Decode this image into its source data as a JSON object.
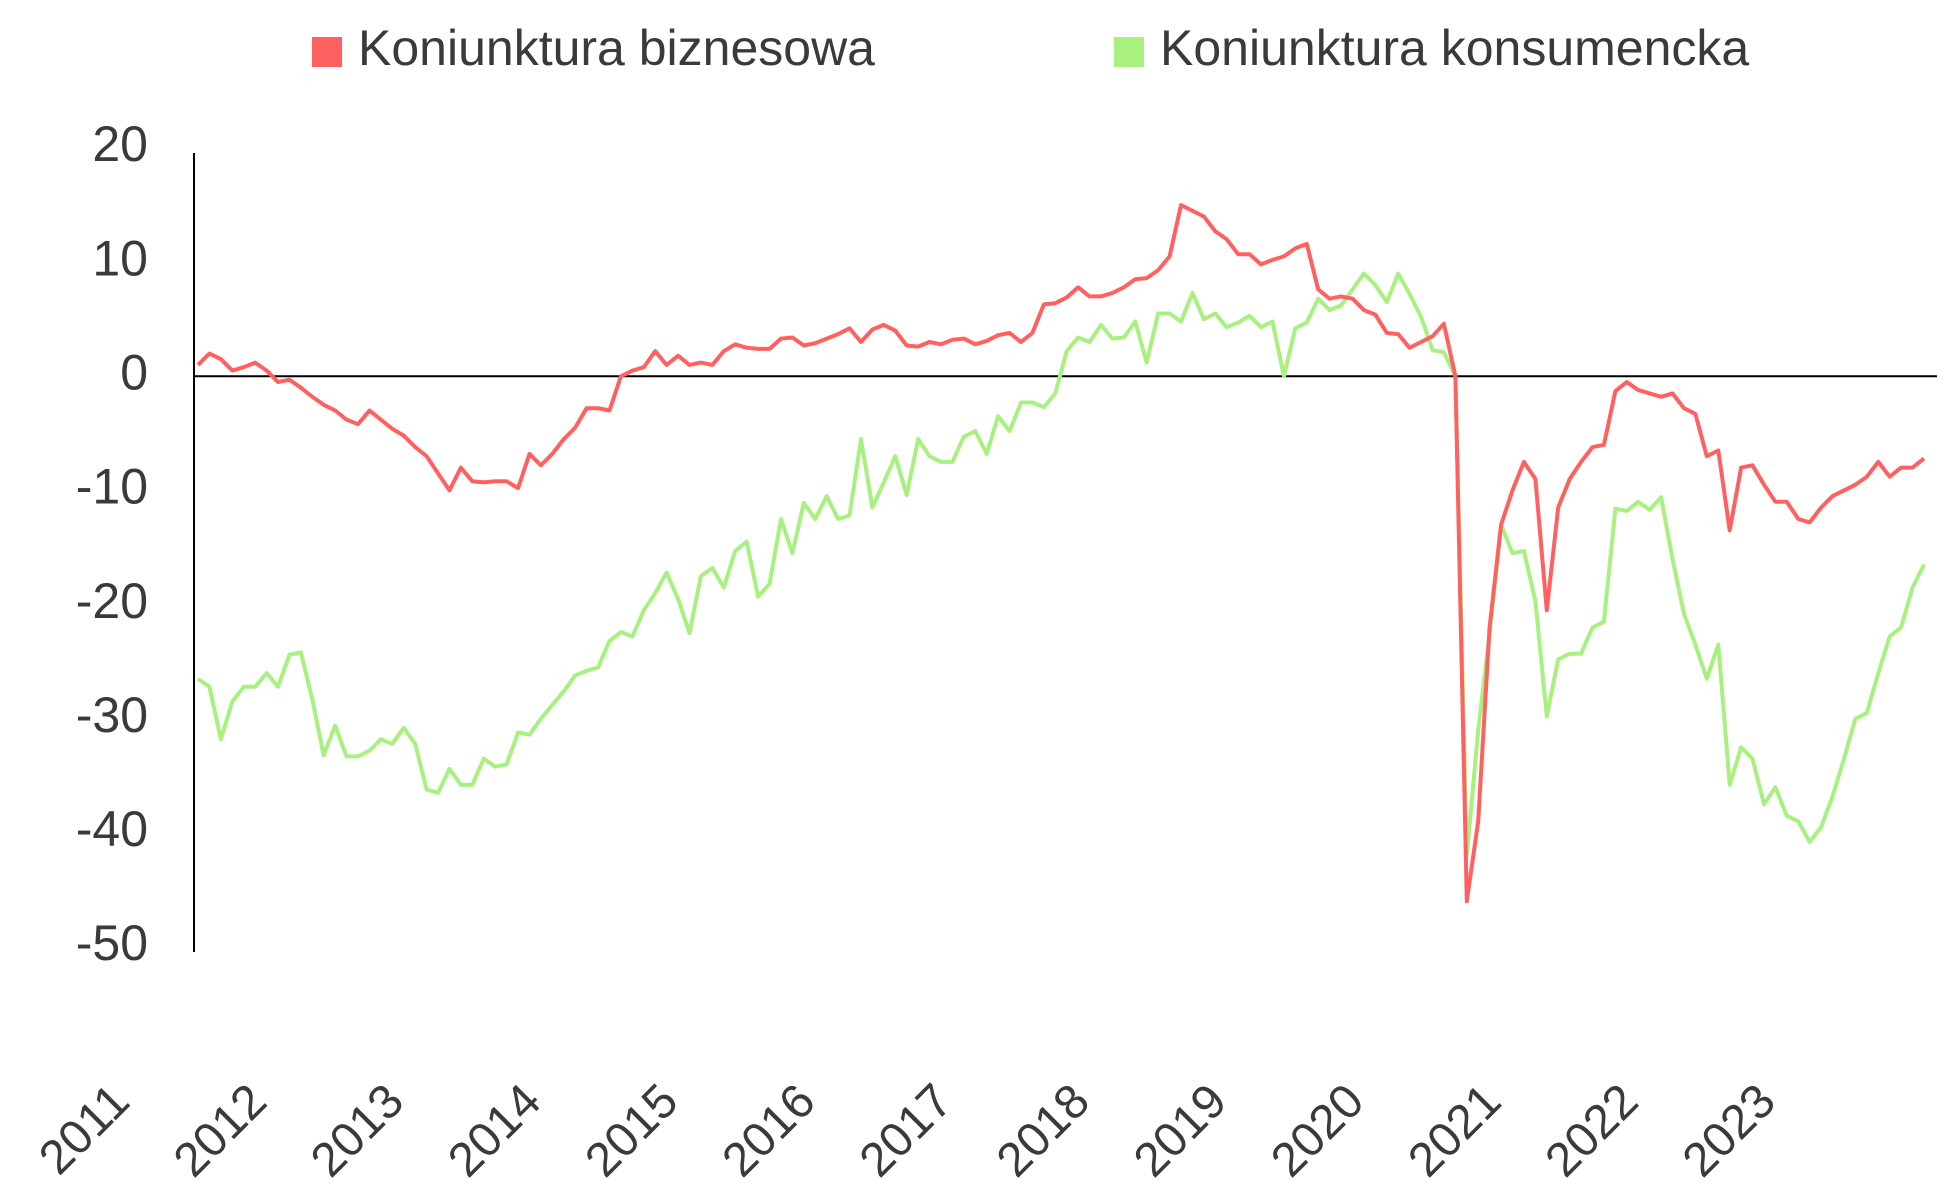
{
  "chart_data": {
    "type": "line",
    "categories": [
      "2011",
      null,
      null,
      null,
      null,
      null,
      null,
      null,
      null,
      null,
      null,
      null,
      "2012",
      null,
      null,
      null,
      null,
      null,
      null,
      null,
      null,
      null,
      null,
      null,
      "2013",
      null,
      null,
      null,
      null,
      null,
      null,
      null,
      null,
      null,
      null,
      null,
      "2014",
      null,
      null,
      null,
      null,
      null,
      null,
      null,
      null,
      null,
      null,
      null,
      "2015",
      null,
      null,
      null,
      null,
      null,
      null,
      null,
      null,
      null,
      null,
      null,
      "2016",
      null,
      null,
      null,
      null,
      null,
      null,
      null,
      null,
      null,
      null,
      null,
      "2017",
      null,
      null,
      null,
      null,
      null,
      null,
      null,
      null,
      null,
      null,
      null,
      "2018",
      null,
      null,
      null,
      null,
      null,
      null,
      null,
      null,
      null,
      null,
      null,
      "2019",
      null,
      null,
      null,
      null,
      null,
      null,
      null,
      null,
      null,
      null,
      null,
      "2020",
      null,
      null,
      null,
      null,
      null,
      null,
      null,
      null,
      null,
      null,
      null,
      "2021",
      null,
      null,
      null,
      null,
      null,
      null,
      null,
      null,
      null,
      null,
      null,
      "2022",
      null,
      null,
      null,
      null,
      null,
      null,
      null,
      null,
      null,
      null,
      null,
      "2023",
      null,
      null,
      null,
      null,
      null,
      null,
      null
    ],
    "series": [
      {
        "name": "Koniunktura biznesowa",
        "color": "#ff6161",
        "values": [
          1,
          2,
          1.5,
          0.5,
          0.8,
          1.2,
          0.5,
          -0.5,
          -0.3,
          -1,
          -1.8,
          -2.5,
          -3,
          -3.8,
          -4.2,
          -3,
          -3.8,
          -4.6,
          -5.2,
          -6.2,
          -7,
          -8.5,
          -10,
          -8,
          -9.2,
          -9.3,
          -9.2,
          -9.2,
          -9.8,
          -6.8,
          -7.8,
          -6.8,
          -5.5,
          -4.5,
          -2.8,
          -2.8,
          -3,
          0,
          0.5,
          0.8,
          2.2,
          1,
          1.8,
          1,
          1.2,
          1,
          2.2,
          2.8,
          2.5,
          2.4,
          2.4,
          3.3,
          3.4,
          2.7,
          2.9,
          3.3,
          3.7,
          4.2,
          3,
          4.1,
          4.5,
          4,
          2.7,
          2.6,
          3,
          2.8,
          3.2,
          3.3,
          2.8,
          3.1,
          3.6,
          3.8,
          3,
          3.8,
          6.3,
          6.4,
          6.9,
          7.8,
          7,
          7,
          7.3,
          7.8,
          8.5,
          8.6,
          9.3,
          10.5,
          15,
          14.5,
          14,
          12.7,
          12,
          10.7,
          10.7,
          9.8,
          10.2,
          10.5,
          11.2,
          11.6,
          7.6,
          6.8,
          7,
          6.8,
          5.8,
          5.4,
          3.8,
          3.7,
          2.5,
          3,
          3.5,
          4.6,
          0,
          -46,
          -39,
          -22,
          -13,
          -10,
          -7.5,
          -9,
          -20.5,
          -11.5,
          -9,
          -7.5,
          -6.2,
          -6,
          -1.3,
          -0.5,
          -1.2,
          -1.5,
          -1.8,
          -1.5,
          -2.8,
          -3.3,
          -7,
          -6.5,
          -13.5,
          -8,
          -7.8,
          -9.5,
          -11,
          -11,
          -12.5,
          -12.8,
          -11.5,
          -10.5,
          -10,
          -9.5,
          -8.8,
          -7.5,
          -8.8,
          -8,
          -8,
          -7.2
        ]
      },
      {
        "name": "Koniunktura konsumencka",
        "color": "#a8f080",
        "values": [
          -26.5,
          -27.2,
          -31.8,
          -28.5,
          -27.2,
          -27.2,
          -26,
          -27.2,
          -24.4,
          -24.2,
          -28.3,
          -33.2,
          -30.6,
          -33.3,
          -33.3,
          -32.8,
          -31.8,
          -32.2,
          -30.8,
          -32.2,
          -36.2,
          -36.5,
          -34.4,
          -35.8,
          -35.8,
          -33.5,
          -34.2,
          -34,
          -31.2,
          -31.4,
          -30,
          -28.8,
          -27.6,
          -26.2,
          -25.8,
          -25.5,
          -23.2,
          -22.4,
          -22.8,
          -20.5,
          -19,
          -17.2,
          -19.5,
          -22.5,
          -17.5,
          -16.8,
          -18.5,
          -15.3,
          -14.5,
          -19.3,
          -18.2,
          -12.5,
          -15.5,
          -11.1,
          -12.5,
          -10.5,
          -12.5,
          -12.2,
          -5.5,
          -11.5,
          -9.3,
          -7,
          -10.4,
          -5.5,
          -7,
          -7.5,
          -7.5,
          -5.3,
          -4.8,
          -6.8,
          -3.5,
          -4.8,
          -2.3,
          -2.3,
          -2.7,
          -1.5,
          2.2,
          3.4,
          3,
          4.5,
          3.3,
          3.4,
          4.8,
          1.2,
          5.5,
          5.5,
          4.8,
          7.3,
          5,
          5.5,
          4.3,
          4.7,
          5.3,
          4.3,
          4.8,
          0,
          4.2,
          4.7,
          6.8,
          5.8,
          6.2,
          7.6,
          9,
          8,
          6.5,
          9,
          7.2,
          5.2,
          2.3,
          2.1,
          0,
          -42,
          -31,
          -22.5,
          -13,
          -15.5,
          -15.3,
          -19.7,
          -29.8,
          -24.8,
          -24.3,
          -24.3,
          -22,
          -21.5,
          -11.6,
          -11.8,
          -11,
          -11.7,
          -10.6,
          -16,
          -20.8,
          -23.5,
          -26.5,
          -23.5,
          -35.8,
          -32.5,
          -33.5,
          -37.5,
          -36,
          -38.5,
          -39,
          -40.8,
          -39.5,
          -36.8,
          -33.5,
          -30,
          -29.5,
          -26,
          -22.8,
          -22,
          -18.5,
          -16.5
        ]
      }
    ],
    "ylim": [
      -50,
      20
    ],
    "yticks": [
      -50,
      -40,
      -30,
      -20,
      -10,
      0,
      10,
      20
    ],
    "grid": false,
    "legend": "top"
  }
}
